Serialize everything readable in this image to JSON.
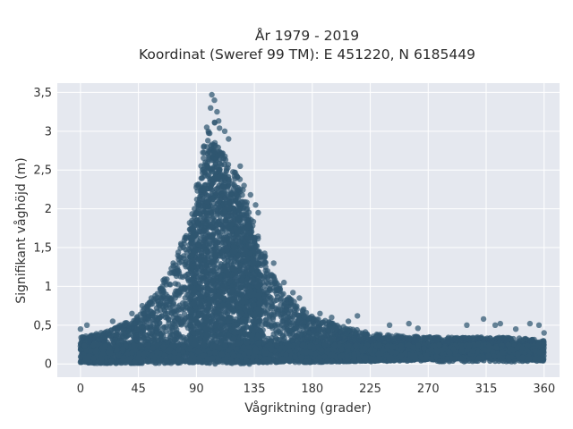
{
  "chart_data": {
    "type": "scatter",
    "title_line1": "År 1979 - 2019",
    "title_line2": "Koordinat (Sweref 99 TM): E 451220, N 6185449",
    "xlabel": "Vågriktning (grader)",
    "ylabel": "Signifikant våghöjd (m)",
    "xlim": [
      -18,
      372
    ],
    "ylim": [
      -0.17,
      3.62
    ],
    "xticks": [
      0,
      45,
      90,
      135,
      180,
      225,
      270,
      315,
      360
    ],
    "yticks": [
      0,
      0.5,
      1,
      1.5,
      2,
      2.5,
      3,
      3.5
    ],
    "ytick_labels": [
      "0",
      "0,5",
      "1",
      "1,5",
      "2",
      "2,5",
      "3",
      "3,5"
    ],
    "grid": true,
    "marker_color": "#2f5670",
    "plot_background": "#e5e8ef",
    "envelope": {
      "x": [
        0,
        10,
        20,
        30,
        45,
        60,
        75,
        85,
        90,
        95,
        100,
        105,
        110,
        115,
        120,
        125,
        130,
        135,
        140,
        150,
        160,
        170,
        180,
        200,
        225,
        250,
        270,
        300,
        315,
        330,
        345,
        360
      ],
      "upper": [
        0.35,
        0.38,
        0.42,
        0.5,
        0.62,
        0.95,
        1.4,
        1.85,
        2.3,
        2.8,
        3.1,
        3.2,
        3.05,
        2.7,
        2.5,
        2.35,
        2.1,
        1.8,
        1.55,
        1.15,
        0.9,
        0.75,
        0.62,
        0.5,
        0.4,
        0.36,
        0.35,
        0.34,
        0.35,
        0.34,
        0.33,
        0.3
      ],
      "lower": [
        0.02,
        0.01,
        0.01,
        0.01,
        0.01,
        0.01,
        0.01,
        0.02,
        0.02,
        0.02,
        0.02,
        0.02,
        0.02,
        0.02,
        0.02,
        0.02,
        0.02,
        0.02,
        0.02,
        0.02,
        0.02,
        0.02,
        0.02,
        0.03,
        0.04,
        0.05,
        0.06,
        0.07,
        0.07,
        0.07,
        0.06,
        0.04
      ]
    },
    "outliers": [
      {
        "x": 102,
        "y": 3.47
      },
      {
        "x": 104,
        "y": 3.4
      },
      {
        "x": 101,
        "y": 3.3
      },
      {
        "x": 106,
        "y": 3.25
      },
      {
        "x": 98,
        "y": 3.05
      },
      {
        "x": 124,
        "y": 2.55
      },
      {
        "x": 127,
        "y": 2.3
      },
      {
        "x": 136,
        "y": 2.05
      },
      {
        "x": 138,
        "y": 1.95
      },
      {
        "x": 132,
        "y": 2.18
      },
      {
        "x": 115,
        "y": 2.9
      },
      {
        "x": 112,
        "y": 3.0
      },
      {
        "x": 78,
        "y": 1.55
      },
      {
        "x": 72,
        "y": 1.3
      },
      {
        "x": 65,
        "y": 1.05
      },
      {
        "x": 55,
        "y": 0.85
      },
      {
        "x": 48,
        "y": 0.75
      },
      {
        "x": 40,
        "y": 0.65
      },
      {
        "x": 25,
        "y": 0.55
      },
      {
        "x": 0,
        "y": 0.45
      },
      {
        "x": 5,
        "y": 0.5
      },
      {
        "x": 150,
        "y": 1.3
      },
      {
        "x": 158,
        "y": 1.05
      },
      {
        "x": 165,
        "y": 0.92
      },
      {
        "x": 170,
        "y": 0.85
      },
      {
        "x": 186,
        "y": 0.65
      },
      {
        "x": 195,
        "y": 0.6
      },
      {
        "x": 208,
        "y": 0.55
      },
      {
        "x": 215,
        "y": 0.62
      },
      {
        "x": 240,
        "y": 0.5
      },
      {
        "x": 255,
        "y": 0.52
      },
      {
        "x": 262,
        "y": 0.46
      },
      {
        "x": 300,
        "y": 0.5
      },
      {
        "x": 313,
        "y": 0.58
      },
      {
        "x": 322,
        "y": 0.5
      },
      {
        "x": 326,
        "y": 0.52
      },
      {
        "x": 349,
        "y": 0.52
      },
      {
        "x": 356,
        "y": 0.5
      },
      {
        "x": 360,
        "y": 0.4
      },
      {
        "x": 338,
        "y": 0.45
      }
    ]
  }
}
